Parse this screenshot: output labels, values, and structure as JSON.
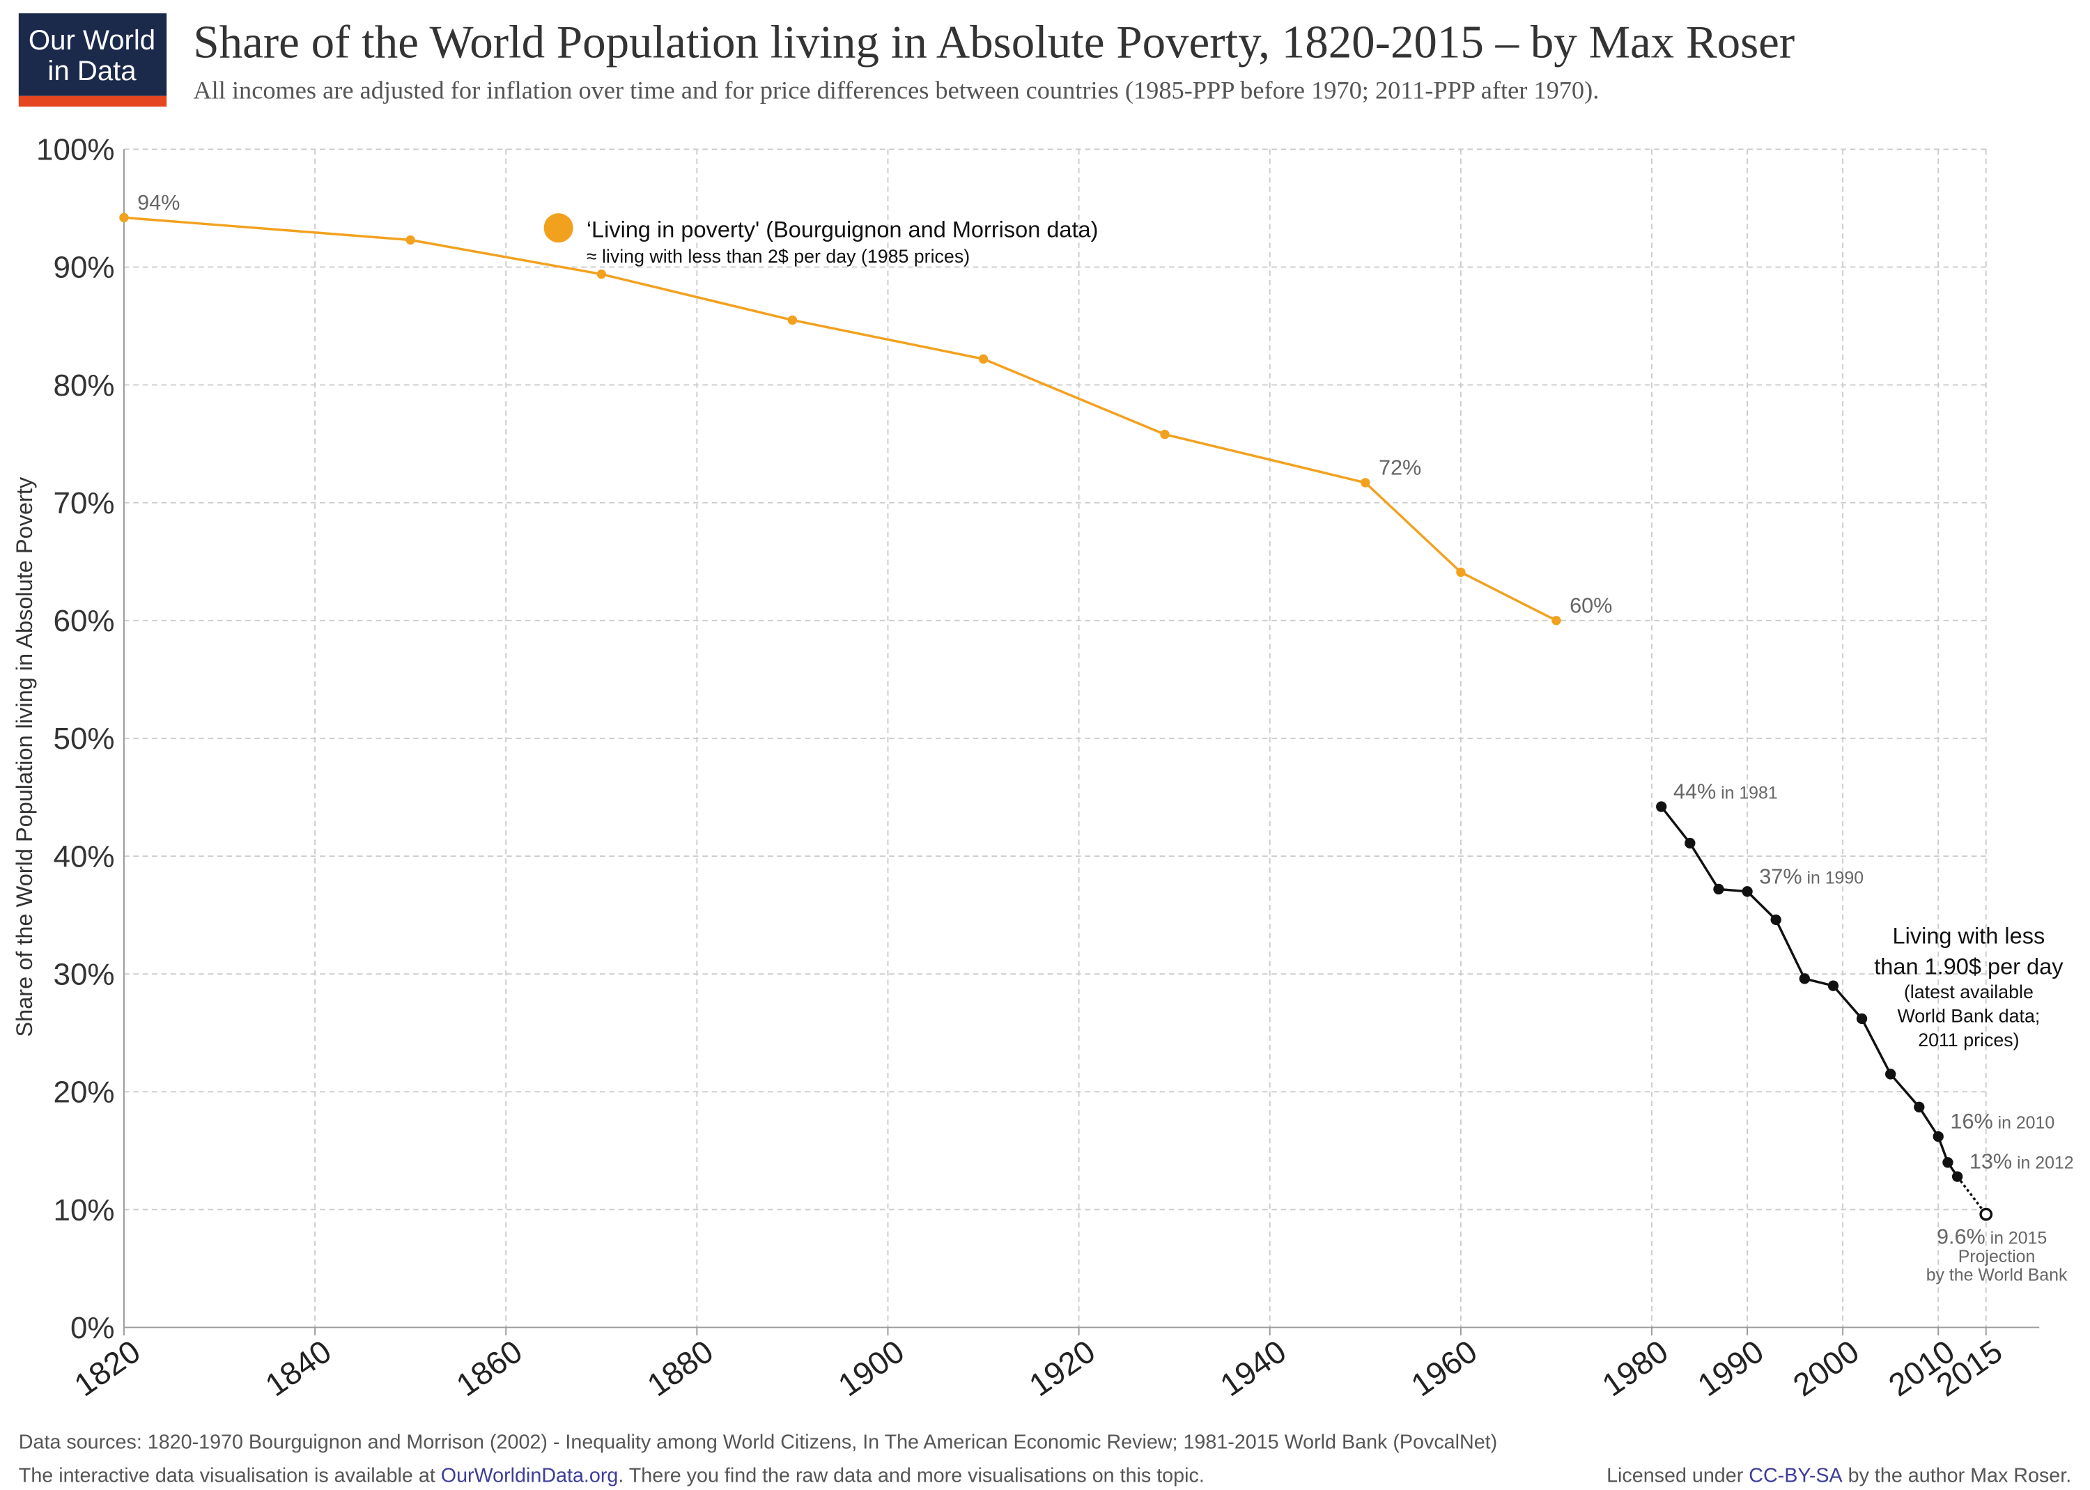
{
  "logo": {
    "line1": "Our World",
    "line2": "in Data"
  },
  "chart_data": {
    "type": "line",
    "title": "Share of the World Population living in Absolute Poverty, 1820-2015 – by Max Roser",
    "subtitle": "All incomes are adjusted for inflation over time and for price differences between countries (1985-PPP before 1970; 2011-PPP after 1970).",
    "y_label": "Share of the World Population living in Absolute Poverty",
    "xlim": [
      1820,
      2015
    ],
    "xticks": [
      1820,
      1840,
      1860,
      1880,
      1900,
      1920,
      1940,
      1960,
      1980,
      1990,
      2000,
      2010,
      2015
    ],
    "ylim": [
      0,
      100
    ],
    "yticks": [
      {
        "value": 0,
        "label": "0%"
      },
      {
        "value": 10,
        "label": "10%"
      },
      {
        "value": 20,
        "label": "20%"
      },
      {
        "value": 30,
        "label": "30%"
      },
      {
        "value": 40,
        "label": "40%"
      },
      {
        "value": 50,
        "label": "50%"
      },
      {
        "value": 60,
        "label": "60%"
      },
      {
        "value": 70,
        "label": "70%"
      },
      {
        "value": 80,
        "label": "80%"
      },
      {
        "value": 90,
        "label": "90%"
      },
      {
        "value": 100,
        "label": "100%"
      }
    ],
    "grid": true,
    "series": [
      {
        "name": "‘Living in poverty' (Bourguignon and Morrison data)",
        "note": "≈ living with less than 2$ per day (1985 prices)",
        "color": "#f2a11f",
        "x": [
          1820,
          1850,
          1870,
          1890,
          1910,
          1929,
          1950,
          1960,
          1970
        ],
        "values": [
          94.2,
          92.3,
          89.4,
          85.5,
          82.2,
          75.8,
          71.7,
          64.1,
          60.0
        ],
        "value_labels": [
          "94%",
          null,
          null,
          null,
          null,
          null,
          "72%",
          null,
          "60%"
        ]
      },
      {
        "name": "Living with less than 1.90$ per day",
        "label_lines": [
          "Living with less",
          "than 1.90$ per day"
        ],
        "note_lines": [
          "(latest available",
          "World Bank data;",
          "2011 prices)"
        ],
        "color": "#111111",
        "dotted_last": true,
        "projection_note": [
          "Projection",
          "by the World Bank"
        ],
        "x": [
          1981,
          1984,
          1987,
          1990,
          1993,
          1996,
          1999,
          2002,
          2005,
          2008,
          2010,
          2011,
          2012,
          2015
        ],
        "values": [
          44.2,
          41.1,
          37.2,
          37.0,
          34.6,
          29.6,
          29.0,
          26.2,
          21.5,
          18.7,
          16.2,
          14.0,
          12.8,
          9.6
        ],
        "value_labels": [
          "44% in 1981",
          null,
          null,
          "37% in 1990",
          null,
          null,
          null,
          null,
          null,
          null,
          "16% in 2010",
          null,
          "13% in 2012",
          "9.6% in 2015"
        ]
      }
    ]
  },
  "footer": {
    "sources": "Data sources: 1820-1970 Bourguignon and Morrison (2002) - Inequality among World Citizens, In The American Economic Review; 1981-2015 World Bank (PovcalNet)",
    "interactive": {
      "before": "The interactive data visualisation is available at ",
      "link": "OurWorldinData.org",
      "after": ". There you find the raw data and more visualisations on this topic."
    },
    "license": {
      "before": "Licensed under ",
      "link": "CC-BY-SA",
      "after": " by the author Max Roser."
    }
  }
}
